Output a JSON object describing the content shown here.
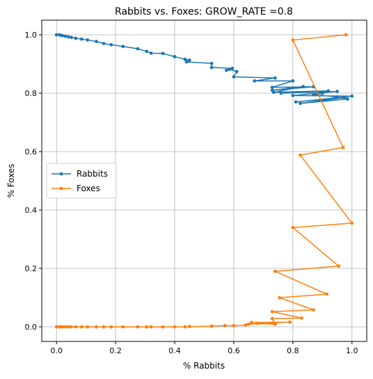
{
  "chart_data": {
    "type": "line",
    "title": "Rabbits vs. Foxes: GROW_RATE =0.8",
    "xlabel": "% Rabbits",
    "ylabel": "% Foxes",
    "xlim": [
      -0.05,
      1.05
    ],
    "ylim": [
      -0.05,
      1.05
    ],
    "xticks": [
      "0.0",
      "0.2",
      "0.4",
      "0.6",
      "0.8",
      "1.0"
    ],
    "yticks": [
      "0.0",
      "0.2",
      "0.4",
      "0.6",
      "0.8",
      "1.0"
    ],
    "grid": true,
    "legend_position": "center-left",
    "series": [
      {
        "name": "Rabbits",
        "color": "#1f77b4",
        "points": [
          [
            0.0,
            1.0
          ],
          [
            0.01,
            1.0
          ],
          [
            0.015,
            0.998
          ],
          [
            0.02,
            0.997
          ],
          [
            0.03,
            0.995
          ],
          [
            0.04,
            0.993
          ],
          [
            0.05,
            0.991
          ],
          [
            0.065,
            0.988
          ],
          [
            0.085,
            0.985
          ],
          [
            0.105,
            0.982
          ],
          [
            0.135,
            0.977
          ],
          [
            0.16,
            0.97
          ],
          [
            0.185,
            0.966
          ],
          [
            0.225,
            0.96
          ],
          [
            0.275,
            0.952
          ],
          [
            0.305,
            0.943
          ],
          [
            0.32,
            0.937
          ],
          [
            0.36,
            0.936
          ],
          [
            0.4,
            0.925
          ],
          [
            0.435,
            0.916
          ],
          [
            0.45,
            0.913
          ],
          [
            0.44,
            0.907
          ],
          [
            0.525,
            0.902
          ],
          [
            0.525,
            0.888
          ],
          [
            0.595,
            0.885
          ],
          [
            0.575,
            0.878
          ],
          [
            0.585,
            0.882
          ],
          [
            0.61,
            0.874
          ],
          [
            0.6,
            0.856
          ],
          [
            0.74,
            0.852
          ],
          [
            0.67,
            0.842
          ],
          [
            0.8,
            0.842
          ],
          [
            0.73,
            0.82
          ],
          [
            0.87,
            0.822
          ],
          [
            0.73,
            0.81
          ],
          [
            0.835,
            0.823
          ],
          [
            0.735,
            0.803
          ],
          [
            0.92,
            0.808
          ],
          [
            0.76,
            0.8
          ],
          [
            0.95,
            0.806
          ],
          [
            0.8,
            0.792
          ],
          [
            1.0,
            0.79
          ],
          [
            0.81,
            0.77
          ],
          [
            0.975,
            0.785
          ],
          [
            0.825,
            0.765
          ],
          [
            0.985,
            0.78
          ],
          [
            0.95,
            0.787
          ],
          [
            0.87,
            0.795
          ],
          [
            0.9,
            0.8
          ]
        ]
      },
      {
        "name": "Foxes",
        "color": "#ff7f0e",
        "points": [
          [
            0.0,
            0.0
          ],
          [
            0.01,
            0.0
          ],
          [
            0.015,
            0.0
          ],
          [
            0.02,
            0.0
          ],
          [
            0.03,
            0.0
          ],
          [
            0.04,
            0.0
          ],
          [
            0.05,
            0.0
          ],
          [
            0.065,
            0.0
          ],
          [
            0.085,
            0.0
          ],
          [
            0.105,
            0.0
          ],
          [
            0.135,
            0.0
          ],
          [
            0.16,
            0.0
          ],
          [
            0.185,
            0.0
          ],
          [
            0.225,
            0.0
          ],
          [
            0.275,
            0.0
          ],
          [
            0.305,
            0.0
          ],
          [
            0.32,
            0.0
          ],
          [
            0.36,
            0.0
          ],
          [
            0.4,
            0.0
          ],
          [
            0.435,
            0.0
          ],
          [
            0.45,
            0.001
          ],
          [
            0.525,
            0.002
          ],
          [
            0.525,
            0.003
          ],
          [
            0.57,
            0.004
          ],
          [
            0.6,
            0.004
          ],
          [
            0.64,
            0.006
          ],
          [
            0.65,
            0.009
          ],
          [
            0.74,
            0.012
          ],
          [
            0.66,
            0.015
          ],
          [
            0.79,
            0.016
          ],
          [
            0.68,
            0.012
          ],
          [
            0.74,
            0.009
          ],
          [
            0.73,
            0.028
          ],
          [
            0.83,
            0.03
          ],
          [
            0.73,
            0.052
          ],
          [
            0.87,
            0.058
          ],
          [
            0.755,
            0.1
          ],
          [
            0.915,
            0.112
          ],
          [
            0.74,
            0.19
          ],
          [
            0.955,
            0.208
          ],
          [
            0.8,
            0.34
          ],
          [
            1.0,
            0.355
          ],
          [
            0.825,
            0.588
          ],
          [
            0.97,
            0.614
          ],
          [
            0.8,
            0.982
          ],
          [
            0.98,
            1.0
          ]
        ]
      }
    ]
  }
}
